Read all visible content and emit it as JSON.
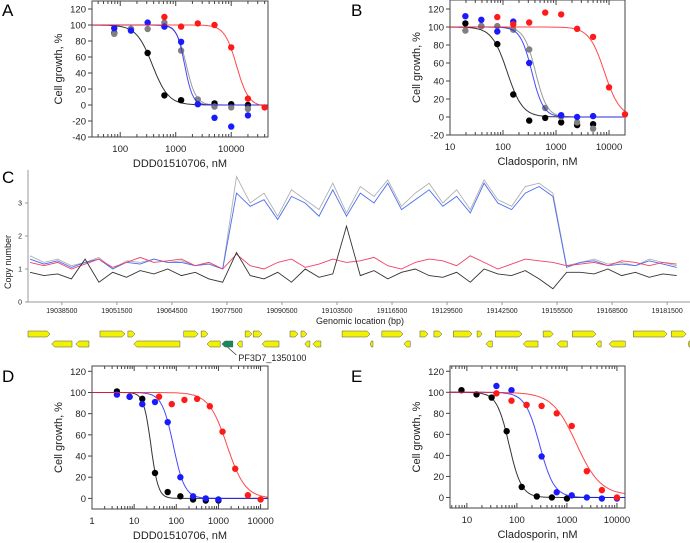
{
  "chart_data": [
    {
      "panel": "A",
      "type": "scatter",
      "xscale": "log",
      "xlabel": "DDD01510706, nM",
      "ylabel": "Cell growth, %",
      "xlim": [
        31,
        46000
      ],
      "ylim": [
        -40,
        130
      ],
      "xticks": [
        100,
        1000,
        10000
      ],
      "yticks": [
        -40,
        -20,
        0,
        20,
        40,
        60,
        80,
        100,
        120
      ],
      "series": [
        {
          "name": "black",
          "color": "#000000",
          "x": [
            78,
            156,
            312,
            625,
            1250,
            5000,
            10000,
            20000
          ],
          "y": [
            90,
            95,
            65,
            12,
            6,
            2,
            1,
            0
          ],
          "fit": {
            "top": 100,
            "bottom": 0,
            "ec50": 380,
            "hill": 3
          }
        },
        {
          "name": "gray",
          "color": "#808080",
          "x": [
            78,
            156,
            312,
            625,
            1250,
            2500,
            5000,
            10000,
            20000
          ],
          "y": [
            89,
            95,
            95,
            103,
            68,
            7,
            -2,
            -3,
            -5
          ],
          "fit": {
            "top": 100,
            "bottom": 0,
            "ec50": 1550,
            "hill": 5
          }
        },
        {
          "name": "blue",
          "color": "#1a1aff",
          "x": [
            78,
            156,
            312,
            625,
            1250,
            2500,
            5000,
            10000,
            20000
          ],
          "y": [
            96,
            93,
            103,
            98,
            79,
            1,
            -16,
            -27,
            -13
          ],
          "fit": {
            "top": 100,
            "bottom": 0,
            "ec50": 1450,
            "hill": 6
          }
        },
        {
          "name": "red",
          "color": "#ff1a1a",
          "x": [
            625,
            1250,
            2500,
            5000,
            10000,
            20000,
            40000
          ],
          "y": [
            110,
            98,
            102,
            100,
            72,
            8,
            -3
          ],
          "fit": {
            "top": 100,
            "bottom": -2,
            "ec50": 12500,
            "hill": 4
          }
        }
      ]
    },
    {
      "panel": "B",
      "type": "scatter",
      "xscale": "log",
      "xlabel": "Cladosporin, nM",
      "ylabel": "Cell growth, %",
      "xlim": [
        10,
        20000
      ],
      "ylim": [
        -20,
        130
      ],
      "xticks": [
        10,
        100,
        1000,
        10000
      ],
      "yticks": [
        -20,
        0,
        20,
        40,
        60,
        80,
        100,
        120
      ],
      "series": [
        {
          "name": "black",
          "color": "#000000",
          "x": [
            19.5,
            39,
            78,
            156,
            312,
            625,
            1250,
            2500,
            5000
          ],
          "y": [
            104,
            101,
            81,
            25,
            -4,
            -1,
            -6,
            -9,
            -8
          ],
          "fit": {
            "top": 100,
            "bottom": 0,
            "ec50": 120,
            "hill": 3
          }
        },
        {
          "name": "gray",
          "color": "#808080",
          "x": [
            19.5,
            39,
            78,
            156,
            312,
            625,
            1250,
            2500,
            5000
          ],
          "y": [
            96,
            101,
            101,
            97,
            75,
            10,
            0,
            -6,
            -13
          ],
          "fit": {
            "top": 100,
            "bottom": 0,
            "ec50": 410,
            "hill": 4
          }
        },
        {
          "name": "blue",
          "color": "#1a1aff",
          "x": [
            19.5,
            39,
            78,
            156,
            312,
            1250,
            2500,
            5000
          ],
          "y": [
            112,
            108,
            95,
            106,
            60,
            2,
            0,
            1
          ],
          "fit": {
            "top": 100,
            "bottom": 0,
            "ec50": 350,
            "hill": 4
          }
        },
        {
          "name": "red",
          "color": "#ff1a1a",
          "x": [
            78,
            156,
            312,
            625,
            1250,
            2500,
            5000,
            10000,
            20000
          ],
          "y": [
            111,
            103,
            105,
            116,
            114,
            98,
            89,
            33,
            3
          ],
          "fit": {
            "top": 100,
            "bottom": 0,
            "ec50": 8200,
            "hill": 3
          }
        }
      ]
    },
    {
      "panel": "C",
      "type": "line",
      "xlabel": "Genomic location (bp)",
      "ylabel": "Copy number",
      "xlim": [
        19030500,
        19186900
      ],
      "ylim": [
        0,
        4
      ],
      "xticks": [
        19038500,
        19051500,
        19064500,
        19077500,
        19090500,
        19103500,
        19116500,
        19129500,
        19142500,
        19155500,
        19168500,
        19181500
      ],
      "yticks": [
        0,
        1,
        2,
        3
      ],
      "x_start": 19031000,
      "x_step": 3250,
      "series": [
        {
          "name": "light-gray",
          "color": "#b0b0b0",
          "y": [
            1.4,
            1.2,
            1.3,
            1.1,
            1.2,
            1.35,
            1.0,
            1.25,
            1.2,
            1.3,
            1.2,
            1.25,
            1.1,
            1.2,
            1.0,
            3.8,
            3.0,
            3.3,
            2.6,
            3.4,
            3.1,
            2.8,
            3.6,
            2.7,
            3.5,
            3.2,
            3.7,
            2.9,
            3.3,
            3.6,
            3.0,
            3.4,
            2.8,
            3.7,
            3.1,
            2.9,
            3.5,
            3.6,
            3.3,
            1.1,
            1.2,
            1.3,
            1.15,
            1.2,
            1.1,
            1.3,
            1.2,
            1.1
          ]
        },
        {
          "name": "blue",
          "color": "#4a6cf0",
          "y": [
            1.3,
            1.15,
            1.25,
            1.05,
            1.2,
            1.3,
            1.0,
            1.2,
            1.15,
            1.3,
            1.2,
            1.2,
            1.1,
            1.15,
            1.0,
            3.3,
            2.9,
            3.1,
            2.5,
            3.2,
            3.0,
            2.6,
            3.4,
            2.6,
            3.3,
            3.0,
            3.6,
            2.8,
            3.1,
            3.4,
            2.9,
            3.2,
            2.7,
            3.6,
            3.0,
            2.8,
            3.3,
            3.5,
            3.2,
            1.05,
            1.2,
            1.25,
            1.1,
            1.15,
            1.1,
            1.25,
            1.15,
            1.05
          ]
        },
        {
          "name": "pink",
          "color": "#f0406a",
          "y": [
            1.2,
            1.1,
            1.2,
            1.0,
            1.15,
            1.3,
            1.05,
            1.2,
            1.35,
            1.2,
            1.25,
            1.3,
            1.1,
            1.2,
            1.0,
            1.45,
            1.1,
            1.0,
            1.2,
            1.3,
            1.05,
            1.15,
            1.3,
            1.2,
            1.25,
            1.35,
            1.1,
            1.0,
            1.2,
            1.3,
            1.25,
            1.1,
            1.4,
            1.2,
            1.0,
            1.15,
            1.3,
            1.25,
            1.2,
            1.1,
            1.15,
            1.2,
            1.1,
            1.25,
            1.2,
            1.1,
            1.2,
            1.15
          ]
        },
        {
          "name": "dark-gray",
          "color": "#333333",
          "y": [
            0.9,
            0.8,
            0.85,
            0.7,
            1.3,
            0.6,
            0.9,
            0.75,
            0.95,
            0.85,
            1.0,
            0.8,
            0.9,
            0.7,
            0.6,
            1.5,
            0.8,
            0.7,
            0.9,
            0.6,
            1.0,
            0.75,
            0.85,
            2.3,
            0.8,
            0.95,
            0.7,
            0.9,
            1.0,
            0.8,
            0.75,
            0.9,
            0.6,
            1.0,
            0.85,
            0.8,
            0.95,
            0.7,
            0.4,
            0.9,
            0.9,
            0.85,
            1.0,
            0.8,
            0.9,
            0.75,
            0.85,
            0.8
          ]
        }
      ],
      "genes": [
        {
          "start": 19030500,
          "end": 19035700,
          "row": 1,
          "strand": "+"
        },
        {
          "start": 19047500,
          "end": 19053400,
          "row": 1,
          "strand": "+"
        },
        {
          "start": 19054100,
          "end": 19055800,
          "row": 1,
          "strand": "+"
        },
        {
          "start": 19067300,
          "end": 19070700,
          "row": 1,
          "strand": "+"
        },
        {
          "start": 19071400,
          "end": 19073000,
          "row": 1,
          "strand": "+"
        },
        {
          "start": 19081800,
          "end": 19083400,
          "row": 1,
          "strand": "+"
        },
        {
          "start": 19083700,
          "end": 19085800,
          "row": 1,
          "strand": "+"
        },
        {
          "start": 19092400,
          "end": 19094300,
          "row": 1,
          "strand": "+"
        },
        {
          "start": 19095000,
          "end": 19096400,
          "row": 1,
          "strand": "+"
        },
        {
          "start": 19104700,
          "end": 19111300,
          "row": 1,
          "strand": "+"
        },
        {
          "start": 19114100,
          "end": 19119100,
          "row": 1,
          "strand": "+"
        },
        {
          "start": 19123100,
          "end": 19125000,
          "row": 1,
          "strand": "+"
        },
        {
          "start": 19126400,
          "end": 19128300,
          "row": 1,
          "strand": "+"
        },
        {
          "start": 19131000,
          "end": 19135400,
          "row": 1,
          "strand": "+"
        },
        {
          "start": 19136600,
          "end": 19137800,
          "row": 1,
          "strand": "+"
        },
        {
          "start": 19140900,
          "end": 19147200,
          "row": 1,
          "strand": "+"
        },
        {
          "start": 19152200,
          "end": 19154600,
          "row": 1,
          "strand": "+"
        },
        {
          "start": 19159100,
          "end": 19164700,
          "row": 1,
          "strand": "+"
        },
        {
          "start": 19173500,
          "end": 19181500,
          "row": 1,
          "strand": "+"
        },
        {
          "start": 19182500,
          "end": 19186000,
          "row": 1,
          "strand": "+"
        },
        {
          "start": 19036100,
          "end": 19040900,
          "row": 2,
          "strand": "-"
        },
        {
          "start": 19041800,
          "end": 19044900,
          "row": 2,
          "strand": "-"
        },
        {
          "start": 19055500,
          "end": 19066400,
          "row": 2,
          "strand": "-"
        },
        {
          "start": 19072800,
          "end": 19075900,
          "row": 2,
          "strand": "-"
        },
        {
          "start": 19076300,
          "end": 19078900,
          "row": 2,
          "strand": "-",
          "highlight": true,
          "label": "PF3D7_1350100"
        },
        {
          "start": 19079900,
          "end": 19081100,
          "row": 2,
          "strand": "-"
        },
        {
          "start": 19085800,
          "end": 19089800,
          "row": 2,
          "strand": "-"
        },
        {
          "start": 19095900,
          "end": 19097100,
          "row": 2,
          "strand": "-"
        },
        {
          "start": 19097800,
          "end": 19099700,
          "row": 2,
          "strand": "-"
        },
        {
          "start": 19111300,
          "end": 19112000,
          "row": 2,
          "strand": "-"
        },
        {
          "start": 19119300,
          "end": 19120800,
          "row": 2,
          "strand": "-"
        },
        {
          "start": 19138700,
          "end": 19140200,
          "row": 2,
          "strand": "-"
        },
        {
          "start": 19147500,
          "end": 19151000,
          "row": 2,
          "strand": "-"
        },
        {
          "start": 19155500,
          "end": 19157900,
          "row": 2,
          "strand": "-"
        },
        {
          "start": 19164700,
          "end": 19165900,
          "row": 2,
          "strand": "-"
        },
        {
          "start": 19167800,
          "end": 19171600,
          "row": 2,
          "strand": "-"
        },
        {
          "start": 19186500,
          "end": 19187000,
          "row": 2,
          "strand": "-"
        }
      ],
      "gene_color": "#f2f200",
      "highlight_color": "#138a5a"
    },
    {
      "panel": "D",
      "type": "scatter",
      "xscale": "log",
      "xlabel": "DDD01510706, nM",
      "ylabel": "Cell growth, %",
      "xlim": [
        1,
        15000
      ],
      "ylim": [
        -10,
        125
      ],
      "xticks": [
        1,
        10,
        100,
        1000,
        10000
      ],
      "yticks": [
        0,
        20,
        40,
        60,
        80,
        100,
        120
      ],
      "series": [
        {
          "name": "black",
          "color": "#000000",
          "x": [
            3.9,
            7.8,
            15.6,
            31.25,
            62.5,
            125,
            250,
            500,
            1000
          ],
          "y": [
            101,
            96,
            94,
            24,
            6,
            2,
            -1,
            -2,
            -2
          ],
          "fit": {
            "top": 100,
            "bottom": 0,
            "ec50": 25,
            "hill": 5
          }
        },
        {
          "name": "blue",
          "color": "#1a1aff",
          "x": [
            3.9,
            7.8,
            15.6,
            31.25,
            62.5,
            125,
            250,
            500,
            1000
          ],
          "y": [
            98,
            96,
            89,
            91,
            72,
            20,
            2,
            0,
            -1
          ],
          "fit": {
            "top": 100,
            "bottom": 0,
            "ec50": 85,
            "hill": 3.2
          }
        },
        {
          "name": "red",
          "color": "#ff1a1a",
          "x": [
            39,
            78,
            156,
            312,
            625,
            1250,
            2500,
            5000,
            10000
          ],
          "y": [
            96,
            89,
            93,
            94,
            87,
            63,
            28,
            3,
            -1
          ],
          "fit": {
            "top": 100,
            "bottom": 0,
            "ec50": 1600,
            "hill": 2
          }
        }
      ]
    },
    {
      "panel": "E",
      "type": "scatter",
      "xscale": "log",
      "xlabel": "Cladosporin, nM",
      "ylabel": "Cell growth, %",
      "xlim": [
        4.6,
        14500
      ],
      "ylim": [
        -10,
        125
      ],
      "xticks": [
        10,
        100,
        1000,
        10000
      ],
      "yticks": [
        0,
        20,
        40,
        60,
        80,
        100,
        120
      ],
      "series": [
        {
          "name": "black",
          "color": "#000000",
          "x": [
            7.8,
            15.6,
            31.25,
            62.5,
            125,
            250,
            500,
            1000
          ],
          "y": [
            102,
            98,
            95,
            63,
            10,
            1,
            0,
            -1
          ],
          "fit": {
            "top": 100,
            "bottom": 0,
            "ec50": 70,
            "hill": 3.5
          }
        },
        {
          "name": "blue",
          "color": "#1a1aff",
          "x": [
            39,
            78,
            156,
            312,
            625,
            1250,
            2500,
            5000,
            10000
          ],
          "y": [
            106,
            102,
            88,
            39,
            5,
            2,
            0,
            -1,
            -1
          ],
          "fit": {
            "top": 100,
            "bottom": 0,
            "ec50": 285,
            "hill": 3
          }
        },
        {
          "name": "red",
          "color": "#ff1a1a",
          "x": [
            39,
            78,
            156,
            312,
            625,
            1250,
            2500,
            5000,
            10000
          ],
          "y": [
            99,
            92,
            88,
            87,
            80,
            68,
            25,
            7,
            0
          ],
          "fit": {
            "top": 100,
            "bottom": 2,
            "ec50": 1550,
            "hill": 1.8
          }
        }
      ]
    }
  ]
}
